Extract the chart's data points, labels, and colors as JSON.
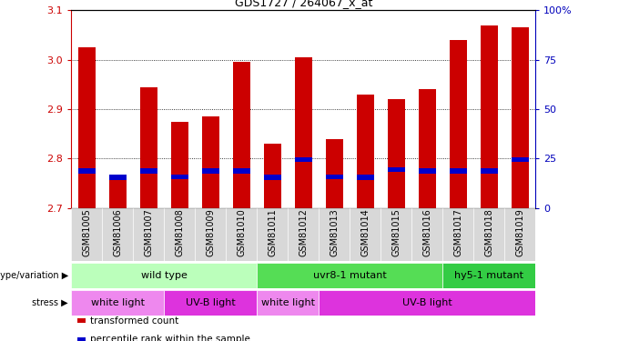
{
  "title": "GDS1727 / 264067_x_at",
  "samples": [
    "GSM81005",
    "GSM81006",
    "GSM81007",
    "GSM81008",
    "GSM81009",
    "GSM81010",
    "GSM81011",
    "GSM81012",
    "GSM81013",
    "GSM81014",
    "GSM81015",
    "GSM81016",
    "GSM81017",
    "GSM81018",
    "GSM81019"
  ],
  "red_values": [
    3.025,
    2.765,
    2.945,
    2.875,
    2.885,
    2.995,
    2.83,
    3.005,
    2.84,
    2.93,
    2.92,
    2.94,
    3.04,
    3.07,
    3.065
  ],
  "blue_values": [
    2.775,
    2.762,
    2.775,
    2.763,
    2.775,
    2.775,
    2.762,
    2.798,
    2.763,
    2.762,
    2.778,
    2.775,
    2.775,
    2.775,
    2.798
  ],
  "ymin": 2.7,
  "ymax": 3.1,
  "yticks": [
    2.7,
    2.8,
    2.9,
    3.0,
    3.1
  ],
  "right_yticks": [
    0,
    25,
    50,
    75,
    100
  ],
  "bar_color": "#cc0000",
  "blue_color": "#0000cc",
  "bar_width": 0.55,
  "genotype_groups": [
    {
      "label": "wild type",
      "start": 0,
      "end": 5,
      "color": "#bbffbb"
    },
    {
      "label": "uvr8-1 mutant",
      "start": 6,
      "end": 11,
      "color": "#55dd55"
    },
    {
      "label": "hy5-1 mutant",
      "start": 12,
      "end": 14,
      "color": "#33cc44"
    }
  ],
  "stress_groups": [
    {
      "label": "white light",
      "start": 0,
      "end": 2,
      "color": "#ee88ee"
    },
    {
      "label": "UV-B light",
      "start": 3,
      "end": 5,
      "color": "#dd33dd"
    },
    {
      "label": "white light",
      "start": 6,
      "end": 7,
      "color": "#ee88ee"
    },
    {
      "label": "UV-B light",
      "start": 8,
      "end": 14,
      "color": "#dd33dd"
    }
  ],
  "legend_items": [
    {
      "label": "transformed count",
      "color": "#cc0000"
    },
    {
      "label": "percentile rank within the sample",
      "color": "#0000cc"
    }
  ],
  "tick_color_left": "#cc0000",
  "tick_color_right": "#0000bb"
}
